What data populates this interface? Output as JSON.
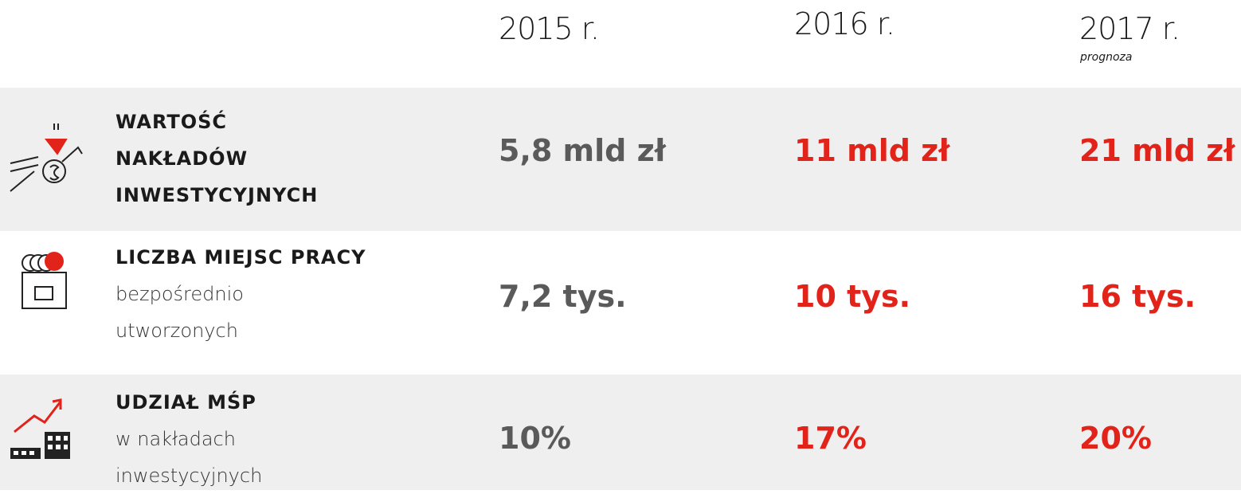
{
  "header": {
    "columns": [
      {
        "year": "2015 r."
      },
      {
        "year": "2016 r."
      },
      {
        "year": "2017 r.",
        "note": "prognoza"
      }
    ]
  },
  "rows": [
    {
      "title_lines": [
        "WARTOŚĆ",
        "NAKŁADÓW",
        "INWESTYCYJNYCH"
      ],
      "description_lines": [],
      "values": [
        "5,8 mld zł",
        "11 mld zł",
        "21 mld zł"
      ]
    },
    {
      "title_lines": [
        "LICZBA MIEJSC PRACY"
      ],
      "description_lines": [
        "bezpośrednio",
        "utworzonych"
      ],
      "values": [
        "7,2 tys.",
        "10 tys.",
        "16 tys."
      ]
    },
    {
      "title_lines": [
        "UDZIAŁ MŚP"
      ],
      "description_lines": [
        "w nakładach",
        "inwestycyjnych"
      ],
      "values": [
        "10%",
        "17%",
        "20%"
      ]
    }
  ]
}
